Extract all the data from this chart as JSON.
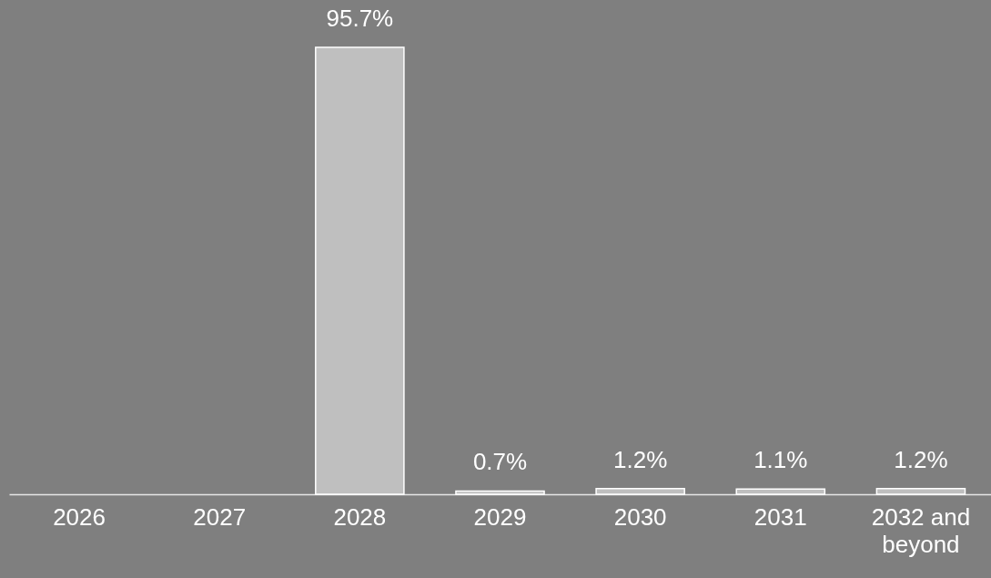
{
  "chart_data": {
    "type": "bar",
    "categories": [
      "2026",
      "2027",
      "2028",
      "2029",
      "2030",
      "2031",
      "2032 and\nbeyond"
    ],
    "values": [
      null,
      null,
      95.7,
      0.7,
      1.2,
      1.1,
      1.2
    ],
    "value_labels": [
      null,
      null,
      "95.7%",
      "0.7%",
      "1.2%",
      "1.1%",
      "1.2%"
    ],
    "color": "#bfbfbf"
  }
}
